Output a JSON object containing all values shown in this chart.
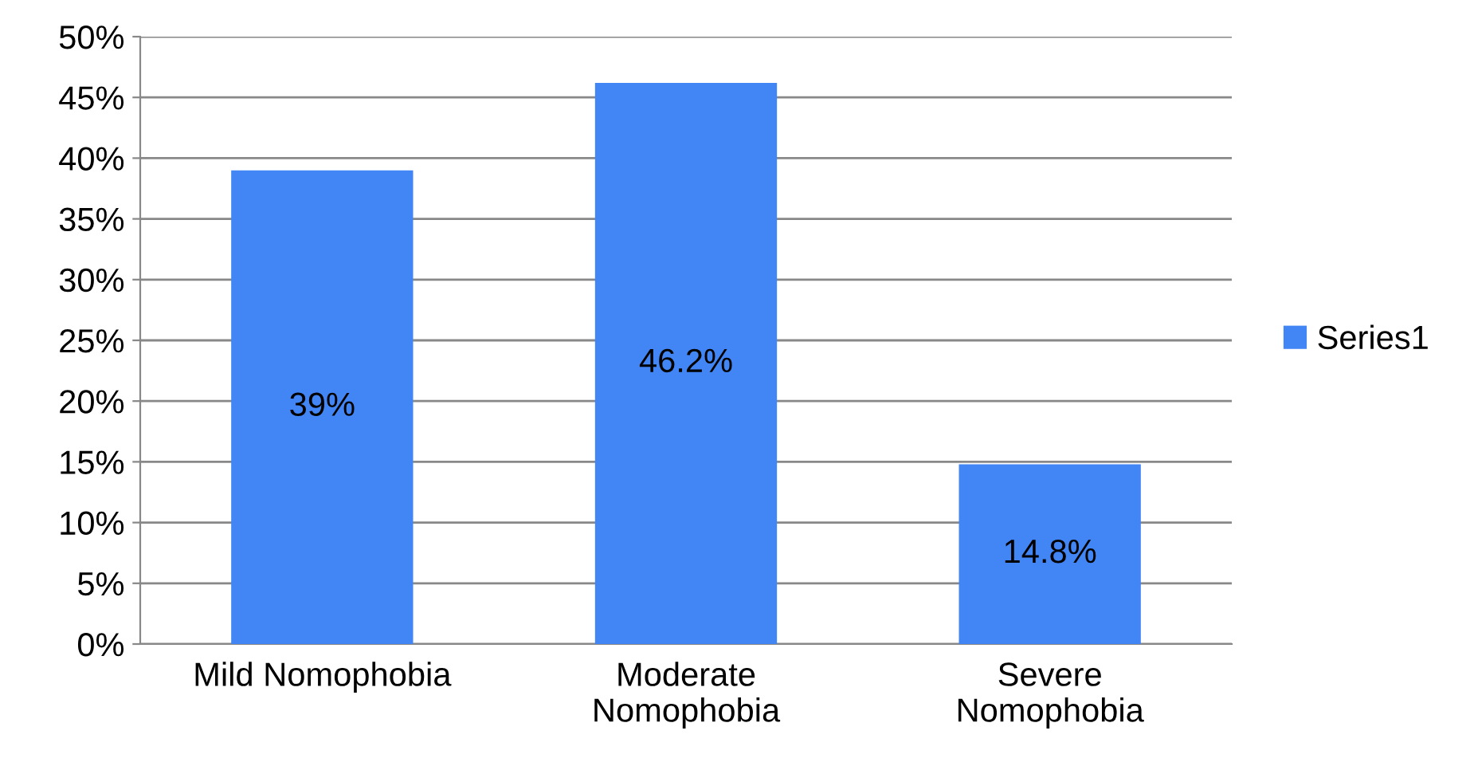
{
  "chart_data": {
    "type": "bar",
    "categories": [
      "Mild Nomophobia",
      "Moderate\nNomophobia",
      "Severe\nNomophobia"
    ],
    "series": [
      {
        "name": "Series1",
        "color": "#4285f4",
        "values": [
          39,
          46.2,
          14.8
        ],
        "value_labels": [
          "39%",
          "46.2%",
          "14.8%"
        ]
      }
    ],
    "ylim": [
      0,
      50
    ],
    "yticks": [
      {
        "value": 0,
        "label": "0%"
      },
      {
        "value": 5,
        "label": "5%"
      },
      {
        "value": 10,
        "label": "10%"
      },
      {
        "value": 15,
        "label": "15%"
      },
      {
        "value": 20,
        "label": "20%"
      },
      {
        "value": 25,
        "label": "25%"
      },
      {
        "value": 30,
        "label": "30%"
      },
      {
        "value": 35,
        "label": "35%"
      },
      {
        "value": 40,
        "label": "40%"
      },
      {
        "value": 45,
        "label": "45%"
      },
      {
        "value": 50,
        "label": "50%"
      }
    ],
    "grid": "y",
    "legend": "right"
  }
}
